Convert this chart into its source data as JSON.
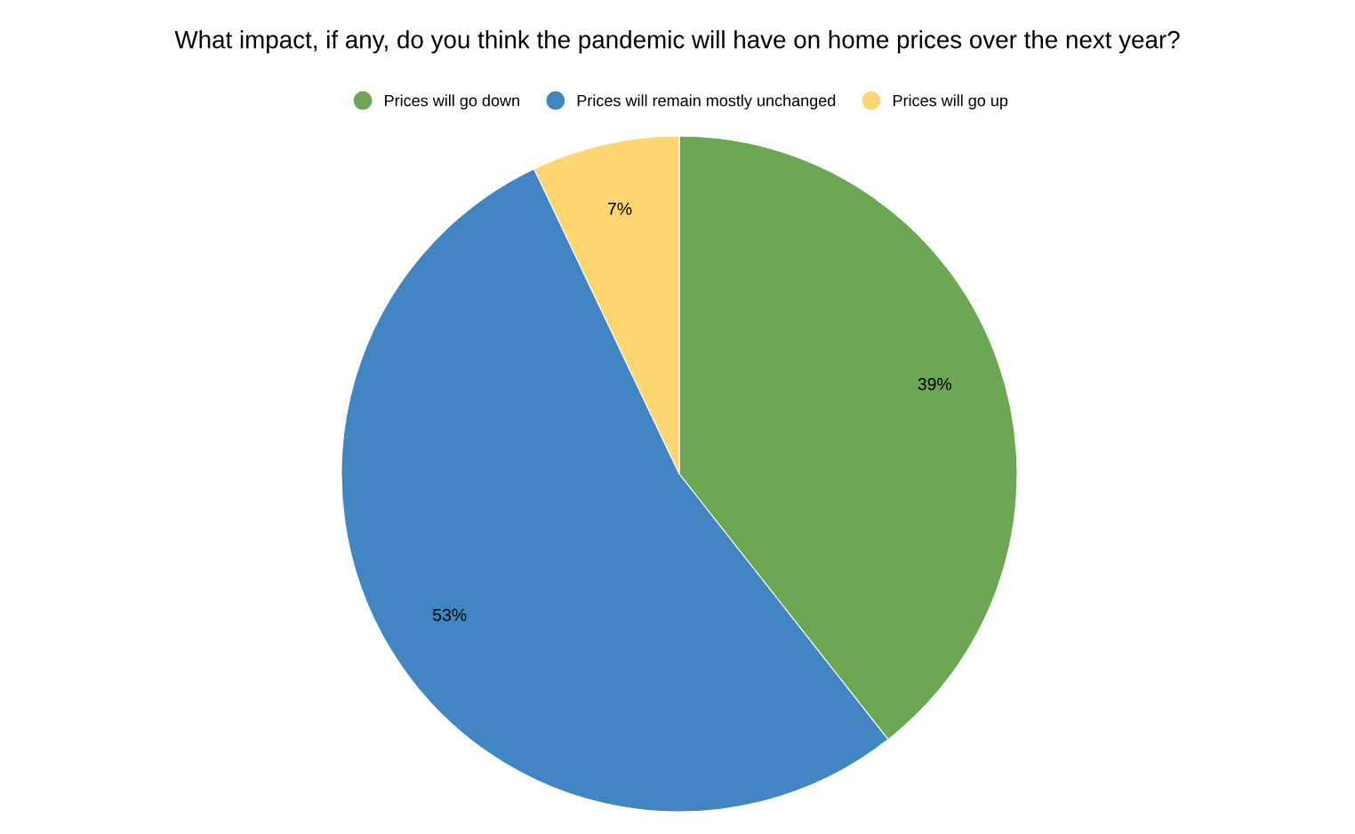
{
  "chart_data": {
    "type": "pie",
    "title": "What impact, if any, do you think the pandemic will have on home prices over the next year?",
    "categories": [
      "Prices will go down",
      "Prices will remain mostly unchanged",
      "Prices will go up"
    ],
    "values": [
      39,
      53,
      7
    ],
    "colors": [
      "#6ca754",
      "#4285c3",
      "#fdd671"
    ],
    "value_labels": [
      "39%",
      "53%",
      "7%"
    ],
    "legend": "top",
    "marker": "circle"
  }
}
